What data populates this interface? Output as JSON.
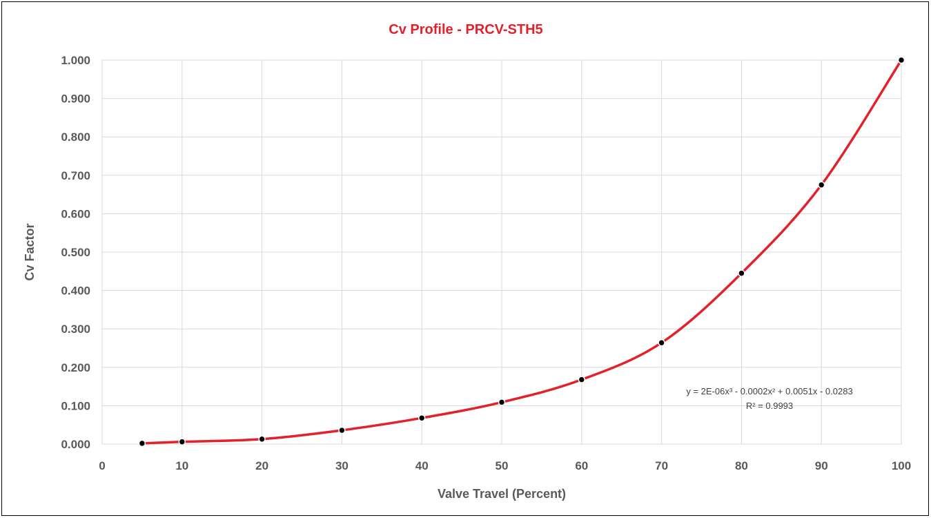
{
  "chart_data": {
    "type": "scatter",
    "title": "Cv Profile - PRCV-STH5",
    "xlabel": "Valve Travel (Percent)",
    "ylabel": "Cv Factor",
    "xlim": [
      0,
      100
    ],
    "ylim": [
      0,
      1.0
    ],
    "x_ticks": [
      "0",
      "10",
      "20",
      "30",
      "40",
      "50",
      "60",
      "70",
      "80",
      "90",
      "100"
    ],
    "y_ticks": [
      "0.000",
      "0.100",
      "0.200",
      "0.300",
      "0.400",
      "0.500",
      "0.600",
      "0.700",
      "0.800",
      "0.900",
      "1.000"
    ],
    "grid": true,
    "smooth_line": true,
    "series": [
      {
        "x": [
          5,
          10,
          20,
          30,
          40,
          50,
          60,
          70,
          80,
          90,
          100
        ],
        "y": [
          0.002,
          0.006,
          0.013,
          0.036,
          0.068,
          0.109,
          0.168,
          0.264,
          0.445,
          0.675,
          1.0
        ],
        "line_color": "#e3212b",
        "marker_color": "#000000"
      }
    ],
    "trendline": {
      "equation": "y = 2E-06x³ - 0.0002x² + 0.0051x - 0.0283",
      "r_squared": "R² = 0.9993"
    },
    "colors": {
      "title": "#e3212b",
      "axis_text": "#595959",
      "grid": "#d9d9d9"
    }
  }
}
